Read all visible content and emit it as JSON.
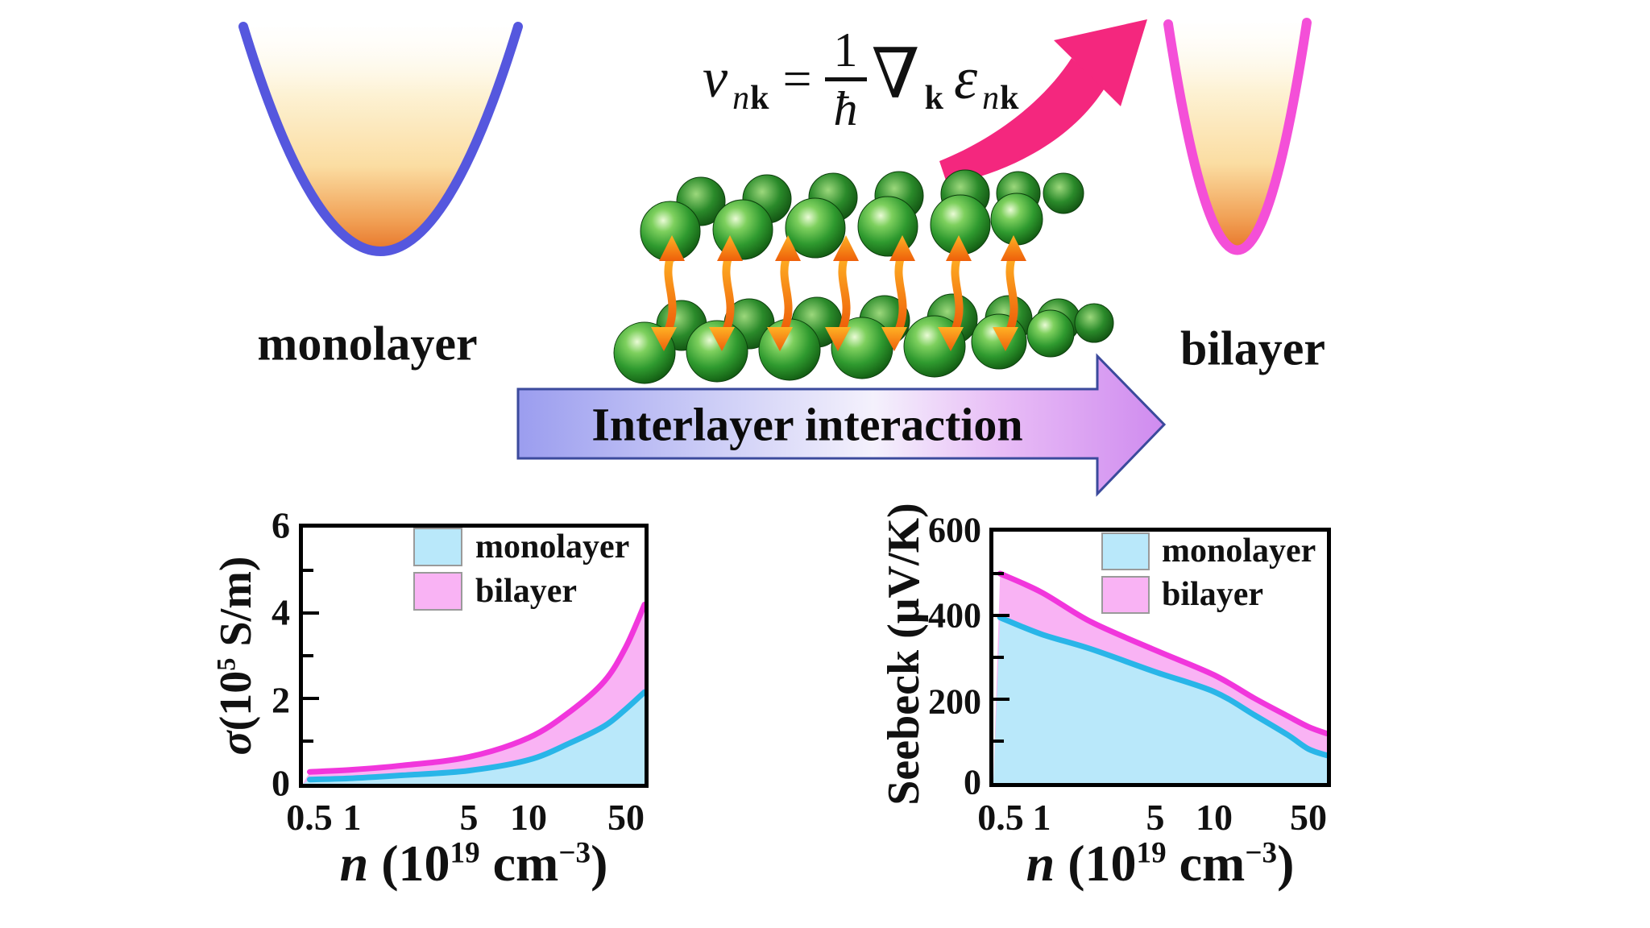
{
  "captions": {
    "monolayer": "monolayer",
    "bilayer": "bilayer"
  },
  "equation": {
    "lhs": "v",
    "lhs_sub_n": "n",
    "lhs_sub_k": "k",
    "equals": "=",
    "numerator": "1",
    "denominator": "ħ",
    "nabla": "∇",
    "nabla_sub_k": "k",
    "rhs": "ε",
    "rhs_sub_n": "n",
    "rhs_sub_k": "k"
  },
  "arrow_label": "Interlayer interaction",
  "colors": {
    "monolayer_line": "#29b5e8",
    "monolayer_fill": "#b9e8fa",
    "bilayer_line": "#f136dc",
    "bilayer_fill": "#f9b3f4",
    "band_monolayer_stroke": "#5557de",
    "band_bilayer_stroke": "#f44fd8",
    "highlight_arrow_pink": "#f4277e",
    "atom_green": "#2f9a2f",
    "interaction_orange": "#ff8c1a",
    "interlayer_arrow_border": "#3b4a9c"
  },
  "axis_labels": {
    "sigma_sym": "σ",
    "sigma_pre": "(10",
    "sigma_sup": "5",
    "sigma_post": " S/m)",
    "seebeck_y": "Seebeck (μV/K)",
    "x_n": "n",
    "x_mid": " (10",
    "x_sup": "19",
    "x_unit": " cm",
    "x_usup": "−3",
    "x_close": ")"
  },
  "chart_data": [
    {
      "id": "electrical-conductivity",
      "type": "area",
      "x_scale": "log",
      "title": "",
      "xlabel": "n (10^19 cm^-3)",
      "ylabel": "σ (10^5 S/m)",
      "xlim": [
        0.47,
        62
      ],
      "ylim": [
        0,
        6
      ],
      "xticks": [
        0.5,
        1,
        5,
        10,
        50
      ],
      "yticks": [
        0,
        2,
        4,
        6
      ],
      "legend_position": "upper-left-inside",
      "grid": false,
      "x": [
        0.5,
        1,
        2,
        5,
        10,
        20,
        35,
        50,
        62
      ],
      "series": [
        {
          "name": "monolayer",
          "values": [
            0.1,
            0.13,
            0.2,
            0.31,
            0.56,
            0.96,
            1.35,
            1.75,
            2.15
          ]
        },
        {
          "name": "bilayer",
          "values": [
            0.28,
            0.33,
            0.43,
            0.63,
            1.08,
            1.7,
            2.4,
            3.2,
            4.2
          ]
        }
      ],
      "legend": [
        "monolayer",
        "bilayer"
      ]
    },
    {
      "id": "seebeck-coefficient",
      "type": "area",
      "x_scale": "log",
      "title": "",
      "xlabel": "n (10^19 cm^-3)",
      "ylabel": "Seebeck (μV/K)",
      "xlim": [
        0.47,
        62
      ],
      "ylim": [
        0,
        600
      ],
      "xticks": [
        0.5,
        1,
        5,
        10,
        50
      ],
      "yticks": [
        0,
        200,
        400,
        600
      ],
      "legend_position": "upper-left-inside",
      "grid": false,
      "x": [
        0.5,
        1,
        2,
        5,
        10,
        20,
        35,
        50,
        62
      ],
      "series": [
        {
          "name": "monolayer",
          "values": [
            395,
            355,
            320,
            265,
            218,
            162,
            115,
            81,
            66
          ]
        },
        {
          "name": "bilayer",
          "values": [
            500,
            455,
            385,
            317,
            258,
            202,
            160,
            134,
            118
          ]
        }
      ],
      "legend": [
        "monolayer",
        "bilayer"
      ]
    }
  ]
}
